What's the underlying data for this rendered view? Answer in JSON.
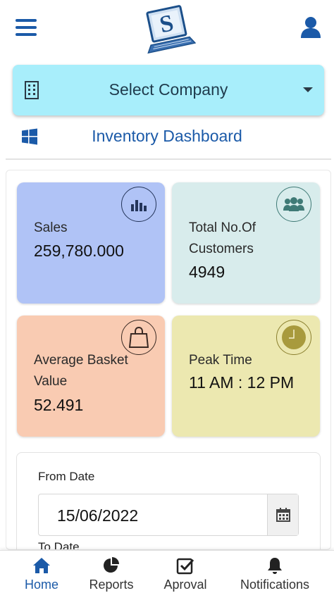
{
  "header": {
    "menu_icon": "hamburger-menu-icon",
    "logo_letter": "S",
    "user_icon": "user-icon"
  },
  "company_select": {
    "label": "Select Company",
    "icon": "building-icon",
    "caret": "caret-down-icon"
  },
  "dashboard": {
    "title": "Inventory Dashboard",
    "icon": "windows-icon"
  },
  "cards": {
    "sales": {
      "label": "Sales",
      "value": "259,780.000",
      "icon": "bar-chart-icon",
      "color": "#b0c3f6"
    },
    "customers": {
      "label_line1": "Total No.Of",
      "label_line2": "Customers",
      "value": "4949",
      "icon": "users-icon",
      "color": "#d8ecec"
    },
    "basket": {
      "label_line1": "Average Basket",
      "label_line2": "Value",
      "value": "52.491",
      "icon": "shopping-bag-icon",
      "color": "#f9cbb2"
    },
    "peak": {
      "label": "Peak Time",
      "value": "11 AM : 12 PM",
      "icon": "clock-icon",
      "color": "#ece8b0"
    }
  },
  "dates": {
    "from_label": "From Date",
    "from_value": "15/06/2022",
    "to_label": "To Date",
    "calendar_icon": "calendar-icon"
  },
  "bottom_nav": {
    "home": "Home",
    "reports": "Reports",
    "approval": "Aproval",
    "notifications": "Notifications",
    "active": "Home",
    "accent": "#1b5aa8"
  }
}
